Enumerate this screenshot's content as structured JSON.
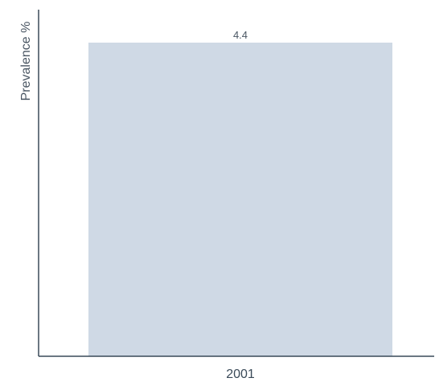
{
  "chart_data": {
    "type": "bar",
    "title": "",
    "xlabel": "",
    "ylabel": "Prevalence %",
    "categories": [
      "2001"
    ],
    "values": [
      4.4
    ],
    "data_labels": [
      "4.4"
    ],
    "ylim": [
      0,
      4.4
    ],
    "grid": false,
    "legend": "none",
    "colors": {
      "bar": "#cfd9e5",
      "axis": "#3a4a58",
      "text": "#4a5663"
    }
  }
}
